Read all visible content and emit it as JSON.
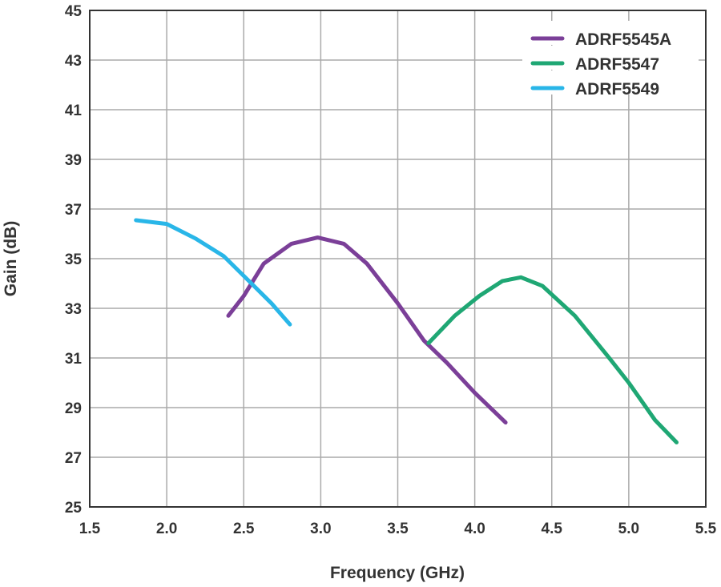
{
  "chart_data": {
    "type": "line",
    "title": "",
    "xlabel": "Frequency (GHz)",
    "ylabel": "Gain (dB)",
    "xlim": [
      1.5,
      5.5
    ],
    "ylim": [
      25,
      45
    ],
    "xticks": [
      "1.5",
      "2.0",
      "2.5",
      "3.0",
      "3.5",
      "4.0",
      "4.5",
      "5.0",
      "5.5"
    ],
    "yticks": [
      "25",
      "27",
      "29",
      "31",
      "33",
      "35",
      "37",
      "39",
      "41",
      "43",
      "45"
    ],
    "grid": true,
    "legend_position": "top-right",
    "series": [
      {
        "name": "ADRF5545A",
        "color": "#7b3f98",
        "x": [
          2.4,
          2.5,
          2.63,
          2.81,
          2.98,
          3.15,
          3.3,
          3.5,
          3.67,
          3.82,
          4.0,
          4.2
        ],
        "y": [
          32.7,
          33.5,
          34.8,
          35.6,
          35.85,
          35.6,
          34.8,
          33.2,
          31.7,
          30.8,
          29.6,
          28.4
        ]
      },
      {
        "name": "ADRF5547",
        "color": "#1fa774",
        "x": [
          3.7,
          3.87,
          4.03,
          4.18,
          4.3,
          4.44,
          4.65,
          4.86,
          5.0,
          5.17,
          5.31
        ],
        "y": [
          31.6,
          32.7,
          33.5,
          34.1,
          34.25,
          33.9,
          32.7,
          31.1,
          30.0,
          28.5,
          27.6
        ]
      },
      {
        "name": "ADRF5549",
        "color": "#29b6e8",
        "x": [
          1.8,
          2.0,
          2.19,
          2.37,
          2.55,
          2.68,
          2.8
        ],
        "y": [
          36.55,
          36.4,
          35.8,
          35.1,
          34.0,
          33.2,
          32.35
        ]
      }
    ]
  }
}
